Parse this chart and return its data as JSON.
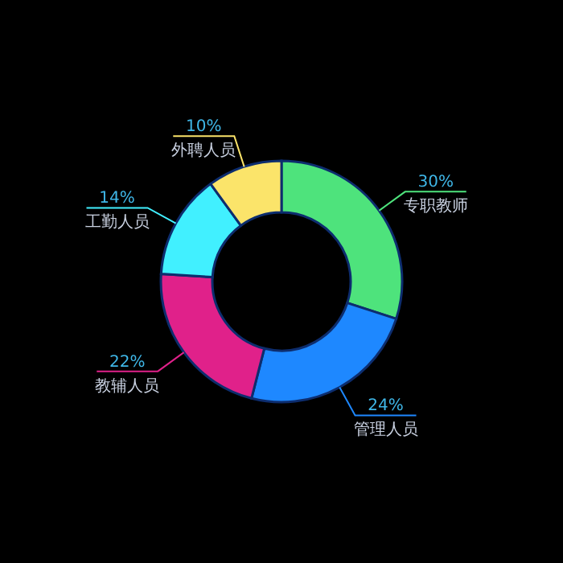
{
  "chart_data": {
    "type": "donut",
    "categories": [
      "专职教师",
      "管理人员",
      "教辅人员",
      "工勤人员",
      "外聘人员"
    ],
    "values": [
      30,
      24,
      22,
      14,
      10
    ],
    "value_labels": [
      "30%",
      "24%",
      "22%",
      "14%",
      "10%"
    ],
    "colors": [
      "#4ee37c",
      "#1e88ff",
      "#e0218a",
      "#41f0ff",
      "#fbe46a"
    ]
  }
}
